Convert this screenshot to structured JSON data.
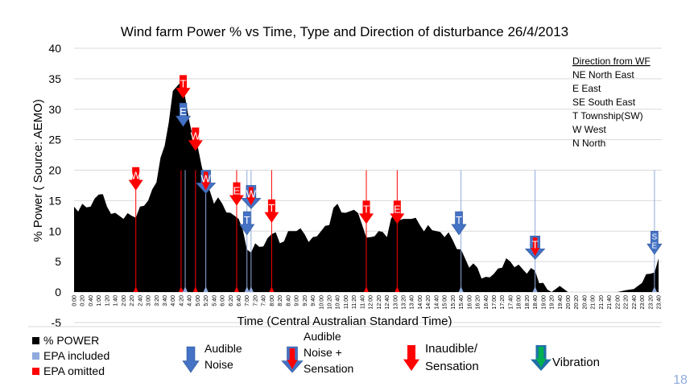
{
  "chart_data": {
    "type": "area",
    "title": "Wind farm Power %  vs  Time, Type and Direction of disturbance 26/4/2013",
    "xlabel": "Time   (Central Australian Standard Time)",
    "ylabel": "% Power ( Source: AEMO)",
    "ylim": [
      -5,
      40
    ],
    "yticks": [
      40,
      35,
      30,
      25,
      20,
      15,
      10,
      5,
      0,
      -5
    ],
    "grid": true,
    "x": [
      "0:00",
      "0:20",
      "0:40",
      "1:00",
      "1:20",
      "1:40",
      "2:00",
      "2:20",
      "2:40",
      "3:00",
      "3:20",
      "3:40",
      "4:00",
      "4:20",
      "4:40",
      "5:00",
      "5:20",
      "5:40",
      "6:00",
      "6:20",
      "6:40",
      "7:00",
      "7:20",
      "7:40",
      "8:00",
      "8:20",
      "8:40",
      "9:00",
      "9:20",
      "9:40",
      "10:00",
      "10:20",
      "10:40",
      "11:00",
      "11:20",
      "11:40",
      "12:00",
      "12:20",
      "12:40",
      "13:00",
      "13:20",
      "13:40",
      "14:00",
      "14:20",
      "14:40",
      "15:00",
      "15:20",
      "15:40",
      "16:00",
      "16:20",
      "16:40",
      "17:00",
      "17:20",
      "17:40",
      "18:00",
      "18:20",
      "18:40",
      "19:00",
      "19:20",
      "19:40",
      "20:00",
      "20:20",
      "20:40",
      "21:00",
      "21:20",
      "21:40",
      "22:00",
      "22:20",
      "22:40",
      "23:00",
      "23:20",
      "23:40"
    ],
    "series": [
      {
        "name": "% POWER",
        "color": "#000000",
        "values": [
          14,
          14.5,
          14,
          16,
          14,
          13,
          12,
          12.5,
          14,
          15,
          18,
          24,
          33,
          34.5,
          28,
          24,
          18,
          14.5,
          14.5,
          13,
          12,
          7,
          8,
          7.5,
          9.5,
          8,
          10,
          10,
          9.5,
          9,
          10,
          11,
          14.5,
          13,
          13.5,
          11,
          9,
          10,
          9,
          13,
          12,
          12,
          11,
          11,
          10,
          9,
          8.5,
          7,
          4,
          4,
          2.5,
          3,
          4,
          5,
          4.5,
          3,
          3.5,
          1.5,
          0,
          1,
          0,
          0,
          0,
          0,
          0,
          0,
          0,
          0.3,
          0.5,
          1.5,
          3,
          5.5
        ]
      }
    ],
    "epa_included": {
      "label": "EPA included",
      "color": "#8faadc",
      "times": [
        "4:30",
        "5:20",
        "7:00",
        "7:10",
        "15:40",
        "18:40",
        "23:30"
      ]
    },
    "epa_omitted": {
      "label": "EPA omitted",
      "color": "#ff0000",
      "times": [
        "2:30",
        "4:20",
        "4:55",
        "6:35",
        "8:00",
        "11:50",
        "13:05"
      ]
    },
    "disturbances": [
      {
        "time": "2:30",
        "dir": "W",
        "type": "inaudible",
        "level": 20.5
      },
      {
        "time": "4:25",
        "dir": "T",
        "type": "inaudible",
        "level": 35.6
      },
      {
        "time": "4:25",
        "dir": "E",
        "type": "audible",
        "level": 31
      },
      {
        "time": "4:55",
        "dir": "W",
        "type": "inaudible",
        "level": 27
      },
      {
        "time": "5:20",
        "dir": "W",
        "type": "both",
        "level": 20
      },
      {
        "time": "6:35",
        "dir": "E",
        "type": "inaudible",
        "level": 18
      },
      {
        "time": "7:00",
        "dir": "T",
        "type": "audible",
        "level": 13.2
      },
      {
        "time": "7:10",
        "dir": "W",
        "type": "both",
        "level": 17.5
      },
      {
        "time": "8:00",
        "dir": "T",
        "type": "inaudible",
        "level": 15.2
      },
      {
        "time": "11:50",
        "dir": "T",
        "type": "inaudible",
        "level": 15
      },
      {
        "time": "13:05",
        "dir": "E",
        "type": "inaudible",
        "level": 15
      },
      {
        "time": "15:35",
        "dir": "T",
        "type": "audible",
        "level": 13.2
      },
      {
        "time": "18:40",
        "dir": "T",
        "type": "both",
        "level": 9.2
      },
      {
        "time": "23:30",
        "dir": "SE",
        "type": "audible",
        "level": 10
      }
    ]
  },
  "direction_legend": {
    "title": "Direction from WF",
    "items": [
      "NE  North East",
      "E  East",
      "SE  South East",
      "T  Township(SW)",
      "W  West",
      "N  North"
    ]
  },
  "legend": {
    "power": "% POWER",
    "epa_included": "EPA included",
    "epa_omitted": "EPA omitted",
    "audible": [
      "Audible",
      "Noise"
    ],
    "audible_sensation": [
      "Audible",
      "Noise +",
      "Sensation"
    ],
    "inaudible": [
      "Inaudible/",
      "Sensation"
    ],
    "vibration": "Vibration"
  },
  "colors": {
    "blue": "#4472c4",
    "red": "#ff0000",
    "green": "#00b050",
    "page_number": "#8faadc"
  },
  "page_number": "18"
}
